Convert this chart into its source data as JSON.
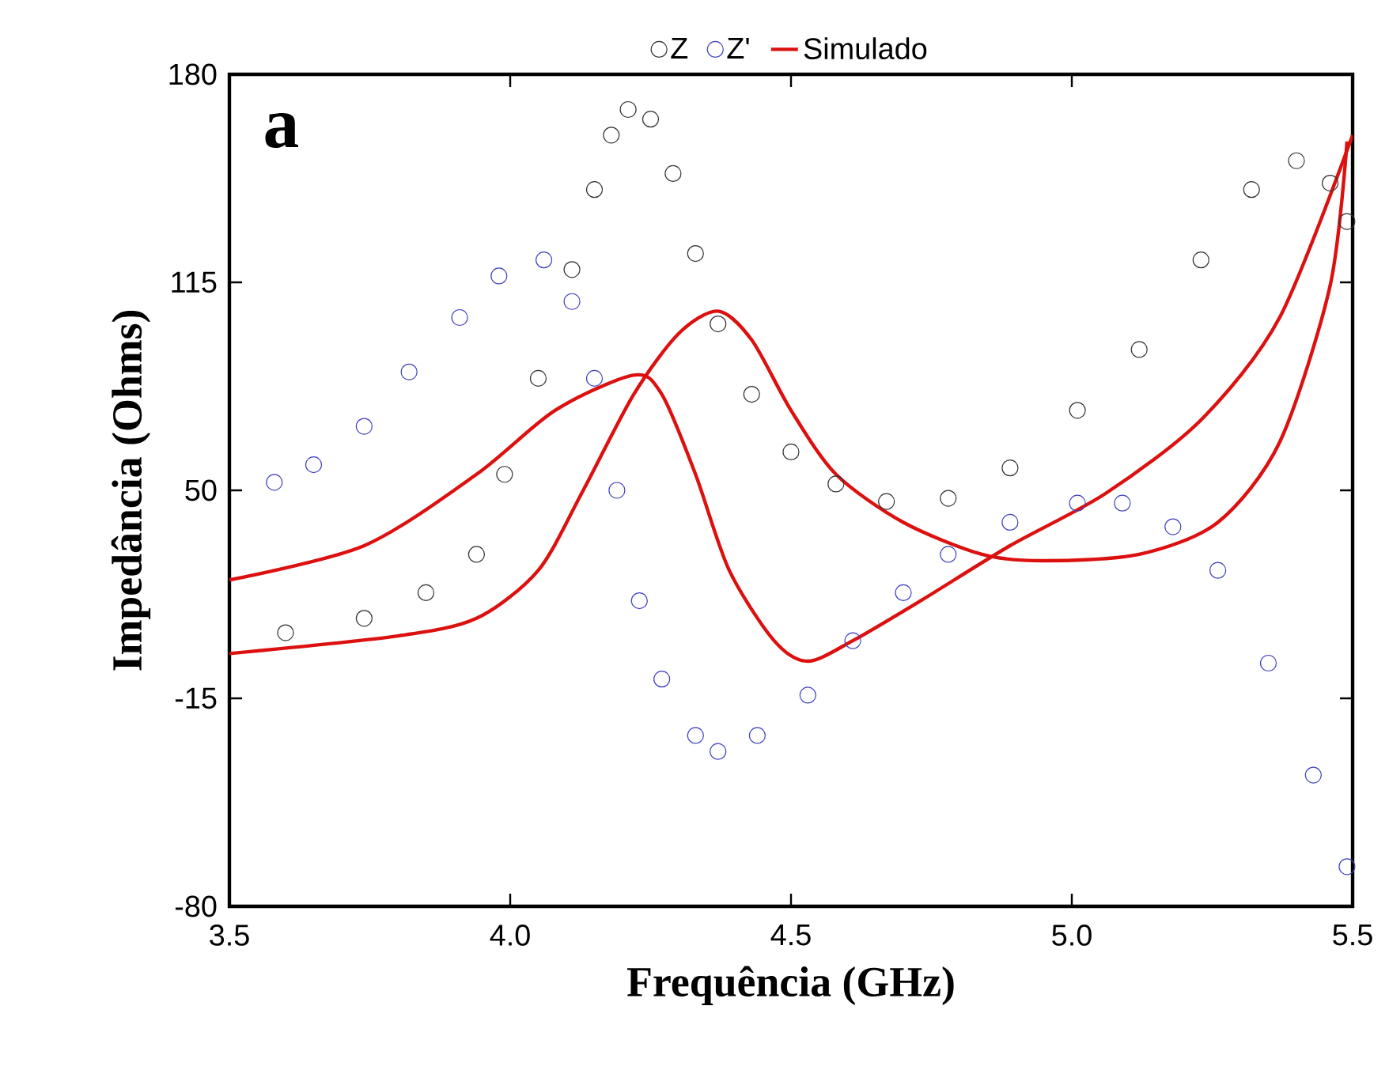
{
  "chart_data": {
    "type": "scatter",
    "xlabel": "Frequência (GHz)",
    "ylabel": "Impedância (Ohms)",
    "annotations": [
      "a"
    ],
    "xlim": [
      3.5,
      5.5
    ],
    "ylim": [
      -80,
      180
    ],
    "xticks": [
      {
        "value": 3.5,
        "label": "3.5"
      },
      {
        "value": 4,
        "label": "4.0"
      },
      {
        "value": 4.5,
        "label": "4.5"
      },
      {
        "value": 5,
        "label": "5.0"
      },
      {
        "value": 5.5,
        "label": "5.5"
      }
    ],
    "yticks": [
      -80,
      -15,
      50,
      115,
      180
    ],
    "grid": false,
    "legend": "top",
    "series": [
      {
        "name": "Z",
        "marker": "circle",
        "color": "#333333",
        "x": [
          3.6,
          3.74,
          3.85,
          3.94,
          3.99,
          4.05,
          4.11,
          4.15,
          4.18,
          4.21,
          4.25,
          4.29,
          4.33,
          4.37,
          4.43,
          4.5,
          4.58,
          4.67,
          4.78,
          4.89,
          5.01,
          5.12,
          5.23,
          5.32,
          5.4,
          5.46,
          5.49
        ],
        "values": [
          5.5,
          10,
          18,
          30,
          55,
          85,
          119,
          144,
          161,
          169,
          166,
          149,
          124,
          102,
          80,
          62,
          52,
          46.5,
          47.5,
          57,
          75,
          94,
          122,
          144,
          153,
          146,
          134
        ]
      },
      {
        "name": "Z'",
        "marker": "circle",
        "color": "#4040c0",
        "x": [
          3.58,
          3.65,
          3.74,
          3.82,
          3.91,
          3.98,
          4.06,
          4.11,
          4.15,
          4.19,
          4.23,
          4.27,
          4.33,
          4.37,
          4.44,
          4.53,
          4.61,
          4.7,
          4.78,
          4.89,
          5.01,
          5.09,
          5.18,
          5.26,
          5.35,
          5.43,
          5.49
        ],
        "values": [
          52.5,
          58,
          70,
          87,
          104,
          117,
          122,
          109,
          85,
          50,
          15.5,
          -9,
          -26.6,
          -31.6,
          -26.6,
          -14,
          3,
          18,
          30,
          40,
          46,
          46,
          38.6,
          25,
          -4,
          -39,
          -67.6
        ]
      },
      {
        "name": "Simulado",
        "type": "line",
        "marker": "none",
        "color": "#dd1010",
        "x": [
          3.5,
          3.74,
          3.94,
          4.08,
          4.22,
          4.27,
          4.33,
          4.39,
          4.47,
          4.53,
          4.61,
          4.73,
          4.89,
          5.06,
          5.23,
          5.37,
          5.5
        ],
        "values": [
          22,
          32.7,
          55,
          75,
          86,
          80,
          55,
          25,
          3,
          -3.4,
          3,
          15.4,
          32.7,
          49,
          72,
          104,
          161
        ]
      },
      {
        "type": "line",
        "marker": "none",
        "color": "#dd1010",
        "x": [
          3.5,
          3.8,
          3.94,
          4.05,
          4.13,
          4.22,
          4.3,
          4.37,
          4.43,
          4.5,
          4.58,
          4.7,
          4.84,
          4.95,
          5.12,
          5.26,
          5.37,
          5.46,
          5.49
        ],
        "values": [
          -1,
          4.5,
          10,
          25,
          50,
          80,
          99,
          106,
          97,
          75,
          55,
          40,
          30,
          28,
          30,
          40,
          65,
          114,
          159
        ]
      }
    ]
  }
}
